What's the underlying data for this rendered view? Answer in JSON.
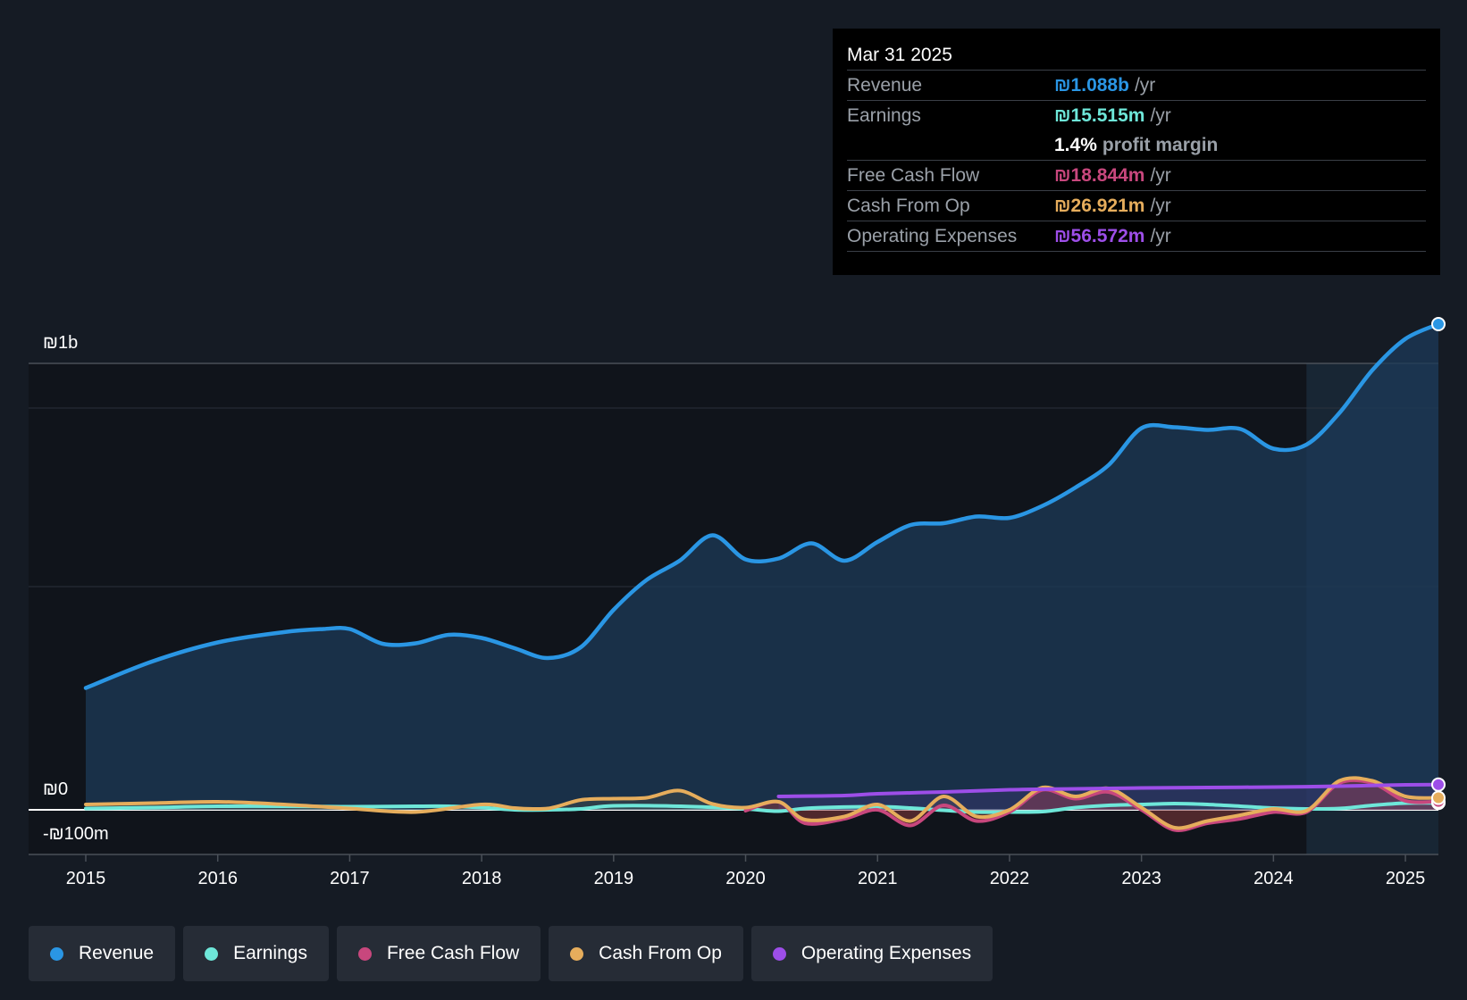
{
  "colors": {
    "background": "#151b24",
    "revenue": "#2a96e4",
    "earnings": "#6ee7d9",
    "fcf": "#c8477d",
    "cfo": "#e6ad5c",
    "opex": "#9d4ee8"
  },
  "tooltip": {
    "date": "Mar 31 2025",
    "rows": [
      {
        "label": "Revenue",
        "value": "₪1.088b",
        "unit": "/yr"
      },
      {
        "label": "Earnings",
        "value": "₪15.515m",
        "unit": "/yr"
      },
      {
        "label": "",
        "value": "1.4%",
        "unit": "profit margin"
      },
      {
        "label": "Free Cash Flow",
        "value": "₪18.844m",
        "unit": "/yr"
      },
      {
        "label": "Cash From Op",
        "value": "₪26.921m",
        "unit": "/yr"
      },
      {
        "label": "Operating Expenses",
        "value": "₪56.572m",
        "unit": "/yr"
      }
    ]
  },
  "legend": [
    {
      "label": "Revenue",
      "icon": "revenue-dot-icon"
    },
    {
      "label": "Earnings",
      "icon": "earnings-dot-icon"
    },
    {
      "label": "Free Cash Flow",
      "icon": "fcf-dot-icon"
    },
    {
      "label": "Cash From Op",
      "icon": "cfo-dot-icon"
    },
    {
      "label": "Operating Expenses",
      "icon": "opex-dot-icon"
    }
  ],
  "chart_data": {
    "type": "area",
    "title": "",
    "y_tick_labels": [
      "₪1b",
      "₪0",
      "-₪100m"
    ],
    "y_ticks": [
      1000,
      0,
      -100
    ],
    "ylim": [
      -100,
      1100
    ],
    "xlim": [
      2015,
      2025.25
    ],
    "x_ticks": [
      2015,
      2016,
      2017,
      2018,
      2019,
      2020,
      2021,
      2022,
      2023,
      2024,
      2025
    ],
    "x_tick_labels": [
      "2015",
      "2016",
      "2017",
      "2018",
      "2019",
      "2020",
      "2021",
      "2022",
      "2023",
      "2024",
      "2025"
    ],
    "forecast_start": 2024.25,
    "series": [
      {
        "name": "Revenue",
        "key": "revenue",
        "values": [
          [
            2015,
            273
          ],
          [
            2015.5,
            332
          ],
          [
            2016,
            375
          ],
          [
            2016.5,
            398
          ],
          [
            2016.8,
            405
          ],
          [
            2017,
            405
          ],
          [
            2017.25,
            372
          ],
          [
            2017.5,
            373
          ],
          [
            2017.75,
            392
          ],
          [
            2018,
            385
          ],
          [
            2018.25,
            362
          ],
          [
            2018.5,
            340
          ],
          [
            2018.75,
            364
          ],
          [
            2019,
            448
          ],
          [
            2019.25,
            515
          ],
          [
            2019.5,
            558
          ],
          [
            2019.75,
            615
          ],
          [
            2020,
            561
          ],
          [
            2020.25,
            563
          ],
          [
            2020.5,
            597
          ],
          [
            2020.75,
            558
          ],
          [
            2021,
            600
          ],
          [
            2021.25,
            638
          ],
          [
            2021.5,
            642
          ],
          [
            2021.75,
            657
          ],
          [
            2022,
            654
          ],
          [
            2022.25,
            681
          ],
          [
            2022.5,
            722
          ],
          [
            2022.75,
            772
          ],
          [
            2023,
            855
          ],
          [
            2023.25,
            857
          ],
          [
            2023.5,
            851
          ],
          [
            2023.75,
            853
          ],
          [
            2024,
            809
          ],
          [
            2024.25,
            818
          ],
          [
            2024.5,
            889
          ],
          [
            2024.75,
            985
          ],
          [
            2025,
            1055
          ],
          [
            2025.25,
            1088
          ]
        ]
      },
      {
        "name": "Earnings",
        "key": "earnings",
        "values": [
          [
            2015,
            3
          ],
          [
            2015.5,
            5
          ],
          [
            2016,
            8
          ],
          [
            2016.5,
            8
          ],
          [
            2017,
            7
          ],
          [
            2017.5,
            8
          ],
          [
            2017.75,
            8
          ],
          [
            2018,
            5
          ],
          [
            2018.25,
            0
          ],
          [
            2018.5,
            0
          ],
          [
            2018.75,
            2
          ],
          [
            2019,
            9
          ],
          [
            2019.5,
            8
          ],
          [
            2020,
            2
          ],
          [
            2020.25,
            -3
          ],
          [
            2020.5,
            4
          ],
          [
            2021,
            7
          ],
          [
            2021.25,
            4
          ],
          [
            2021.5,
            -1
          ],
          [
            2021.75,
            -5
          ],
          [
            2022,
            -5
          ],
          [
            2022.25,
            -4
          ],
          [
            2022.5,
            5
          ],
          [
            2022.75,
            10
          ],
          [
            2023,
            12
          ],
          [
            2023.25,
            14
          ],
          [
            2023.5,
            12
          ],
          [
            2023.75,
            8
          ],
          [
            2024,
            4
          ],
          [
            2024.25,
            2
          ],
          [
            2024.5,
            3
          ],
          [
            2024.75,
            10
          ],
          [
            2025,
            15
          ],
          [
            2025.25,
            15.5
          ]
        ]
      },
      {
        "name": "Free Cash Flow",
        "key": "fcf",
        "start": 2020,
        "values": [
          [
            2020,
            -2
          ],
          [
            2020.25,
            18
          ],
          [
            2020.45,
            -30
          ],
          [
            2020.75,
            -20
          ],
          [
            2021,
            0
          ],
          [
            2021.25,
            -35
          ],
          [
            2021.5,
            10
          ],
          [
            2021.75,
            -25
          ],
          [
            2022,
            -5
          ],
          [
            2022.25,
            45
          ],
          [
            2022.5,
            25
          ],
          [
            2022.75,
            40
          ],
          [
            2023,
            0
          ],
          [
            2023.25,
            -45
          ],
          [
            2023.5,
            -30
          ],
          [
            2023.75,
            -20
          ],
          [
            2024,
            -5
          ],
          [
            2024.25,
            -5
          ],
          [
            2024.5,
            60
          ],
          [
            2024.75,
            60
          ],
          [
            2025,
            20
          ],
          [
            2025.25,
            18.8
          ]
        ]
      },
      {
        "name": "Cash From Op",
        "key": "cfo",
        "values": [
          [
            2015,
            12
          ],
          [
            2015.5,
            15
          ],
          [
            2016,
            18
          ],
          [
            2016.5,
            12
          ],
          [
            2017,
            3
          ],
          [
            2017.5,
            -5
          ],
          [
            2018,
            12
          ],
          [
            2018.25,
            4
          ],
          [
            2018.5,
            3
          ],
          [
            2018.75,
            22
          ],
          [
            2019,
            25
          ],
          [
            2019.25,
            27
          ],
          [
            2019.5,
            43
          ],
          [
            2019.75,
            13
          ],
          [
            2020,
            5
          ],
          [
            2020.25,
            18
          ],
          [
            2020.45,
            -22
          ],
          [
            2020.75,
            -15
          ],
          [
            2021,
            12
          ],
          [
            2021.25,
            -25
          ],
          [
            2021.5,
            30
          ],
          [
            2021.75,
            -15
          ],
          [
            2022,
            0
          ],
          [
            2022.25,
            50
          ],
          [
            2022.5,
            30
          ],
          [
            2022.75,
            48
          ],
          [
            2023,
            5
          ],
          [
            2023.25,
            -40
          ],
          [
            2023.5,
            -25
          ],
          [
            2023.75,
            -12
          ],
          [
            2024,
            2
          ],
          [
            2024.25,
            -2
          ],
          [
            2024.5,
            65
          ],
          [
            2024.75,
            65
          ],
          [
            2025,
            30
          ],
          [
            2025.25,
            26.9
          ]
        ]
      },
      {
        "name": "Operating Expenses",
        "key": "opex",
        "start": 2020.25,
        "values": [
          [
            2020.25,
            30
          ],
          [
            2020.75,
            32
          ],
          [
            2021,
            36
          ],
          [
            2021.5,
            40
          ],
          [
            2022,
            45
          ],
          [
            2022.5,
            47
          ],
          [
            2023,
            49
          ],
          [
            2023.5,
            50
          ],
          [
            2024,
            51
          ],
          [
            2024.5,
            53
          ],
          [
            2025,
            56
          ],
          [
            2025.25,
            56.6
          ]
        ]
      }
    ]
  }
}
